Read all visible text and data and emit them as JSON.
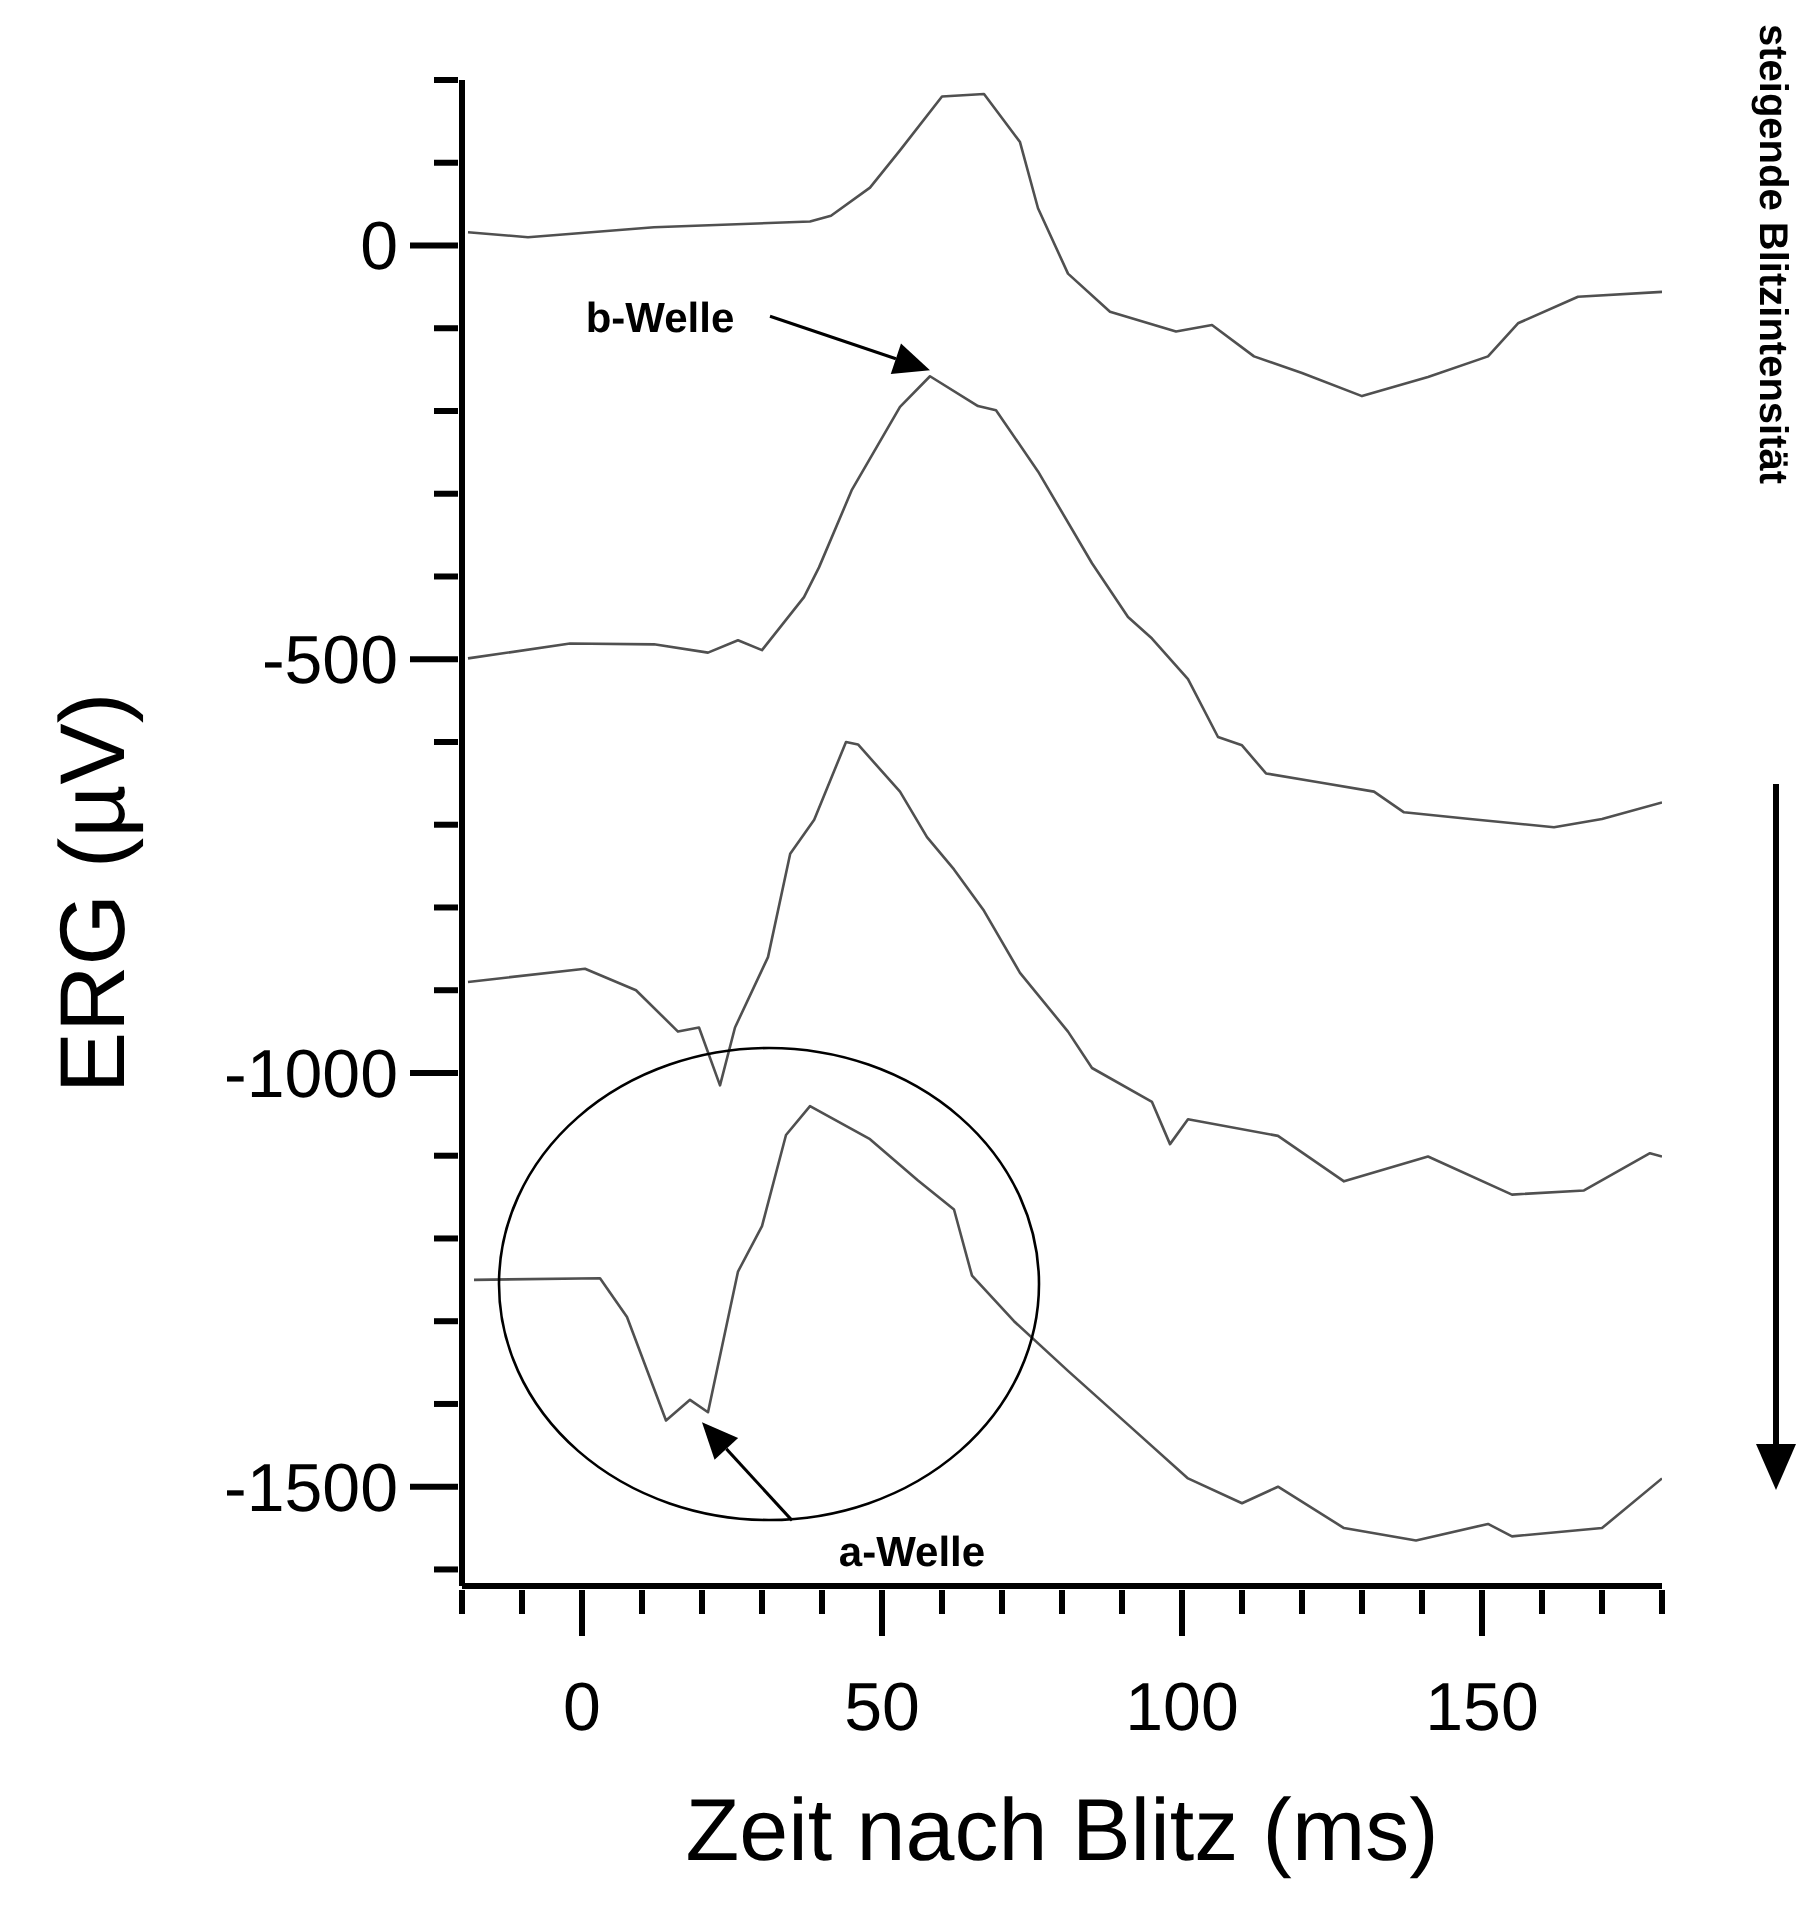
{
  "chart_data": {
    "type": "line",
    "xlabel": "Zeit nach Blitz (ms)",
    "ylabel": "ERG (µV)",
    "xlim": [
      -20,
      180
    ],
    "ylim": [
      -1620,
      200
    ],
    "xticks": [
      {
        "value": -20,
        "label": null
      },
      {
        "value": -10,
        "label": null
      },
      0,
      {
        "value": 10,
        "label": null
      },
      {
        "value": 20,
        "label": null
      },
      {
        "value": 30,
        "label": null
      },
      {
        "value": 40,
        "label": null
      },
      50,
      {
        "value": 60,
        "label": null
      },
      {
        "value": 70,
        "label": null
      },
      {
        "value": 80,
        "label": null
      },
      {
        "value": 90,
        "label": null
      },
      100,
      {
        "value": 110,
        "label": null
      },
      {
        "value": 120,
        "label": null
      },
      {
        "value": 130,
        "label": null
      },
      {
        "value": 140,
        "label": null
      },
      150,
      {
        "value": 160,
        "label": null
      },
      {
        "value": 170,
        "label": null
      },
      {
        "value": 180,
        "label": null
      }
    ],
    "yticks": [
      {
        "value": 200,
        "label": null
      },
      {
        "value": 100,
        "label": null
      },
      0,
      {
        "value": -100,
        "label": null
      },
      {
        "value": -200,
        "label": null
      },
      {
        "value": -300,
        "label": null
      },
      {
        "value": -400,
        "label": null
      },
      -500,
      {
        "value": -600,
        "label": null
      },
      {
        "value": -700,
        "label": null
      },
      {
        "value": -800,
        "label": null
      },
      {
        "value": -900,
        "label": null
      },
      -1000,
      {
        "value": -1100,
        "label": null
      },
      {
        "value": -1200,
        "label": null
      },
      {
        "value": -1300,
        "label": null
      },
      {
        "value": -1400,
        "label": null
      },
      -1500,
      {
        "value": -1600,
        "label": null
      }
    ],
    "series": [
      {
        "color": "#505050",
        "x": [
          -19,
          -9,
          12,
          38,
          41.5,
          48,
          53,
          60,
          67,
          73,
          76,
          81,
          88,
          99,
          105,
          112,
          120,
          130,
          141,
          151,
          156,
          166,
          180
        ],
        "values": [
          16,
          10,
          22,
          29,
          36,
          70,
          115,
          180,
          183,
          125,
          45,
          -34,
          -80,
          -104,
          -96,
          -134,
          -154,
          -182,
          -159,
          -134,
          -94,
          -62,
          -56
        ]
      },
      {
        "color": "#505050",
        "x": [
          -19,
          -2,
          12,
          21,
          26,
          30,
          37,
          39.5,
          45,
          53,
          58,
          66,
          69,
          76,
          85,
          91,
          95,
          101,
          106,
          110,
          114,
          123,
          132,
          137,
          148,
          162,
          170,
          180
        ],
        "values": [
          -499,
          -481,
          -482,
          -492,
          -477,
          -489,
          -425,
          -389,
          -295,
          -195,
          -158,
          -194,
          -199,
          -273,
          -384,
          -449,
          -475,
          -524,
          -594,
          -604,
          -638,
          -649,
          -660,
          -685,
          -693,
          -703,
          -693,
          -673
        ]
      },
      {
        "color": "#505050",
        "x": [
          -19,
          0.5,
          9,
          16,
          19.5,
          23,
          25.5,
          31,
          34.7,
          38.7,
          44,
          46,
          53,
          57.5,
          62,
          67,
          73,
          81,
          85,
          95,
          98,
          101,
          116,
          127,
          141,
          155,
          167,
          178,
          180
        ],
        "values": [
          -890,
          -874,
          -900,
          -950,
          -945,
          -1015,
          -945,
          -860,
          -735,
          -694,
          -600,
          -603,
          -660,
          -715,
          -754,
          -804,
          -879,
          -950,
          -994,
          -1035,
          -1086,
          -1056,
          -1076,
          -1131,
          -1101,
          -1147,
          -1142,
          -1097,
          -1101
        ]
      },
      {
        "color": "#505050",
        "x": [
          -18,
          3,
          7.5,
          14,
          18,
          21,
          26,
          30,
          34,
          38,
          48,
          56,
          62,
          65,
          72,
          81,
          91,
          101,
          110,
          116,
          127,
          139,
          151,
          155,
          170,
          180
        ],
        "values": [
          -1250,
          -1248,
          -1295,
          -1420,
          -1395,
          -1410,
          -1240,
          -1185,
          -1075,
          -1040,
          -1080,
          -1130,
          -1165,
          -1245,
          -1300,
          -1360,
          -1425,
          -1490,
          -1520,
          -1500,
          -1550,
          -1565,
          -1545,
          -1560,
          -1550,
          -1490
        ]
      }
    ],
    "annotations": [
      "b-Welle",
      "a-Welle",
      "steigende Blitzintensität"
    ]
  }
}
